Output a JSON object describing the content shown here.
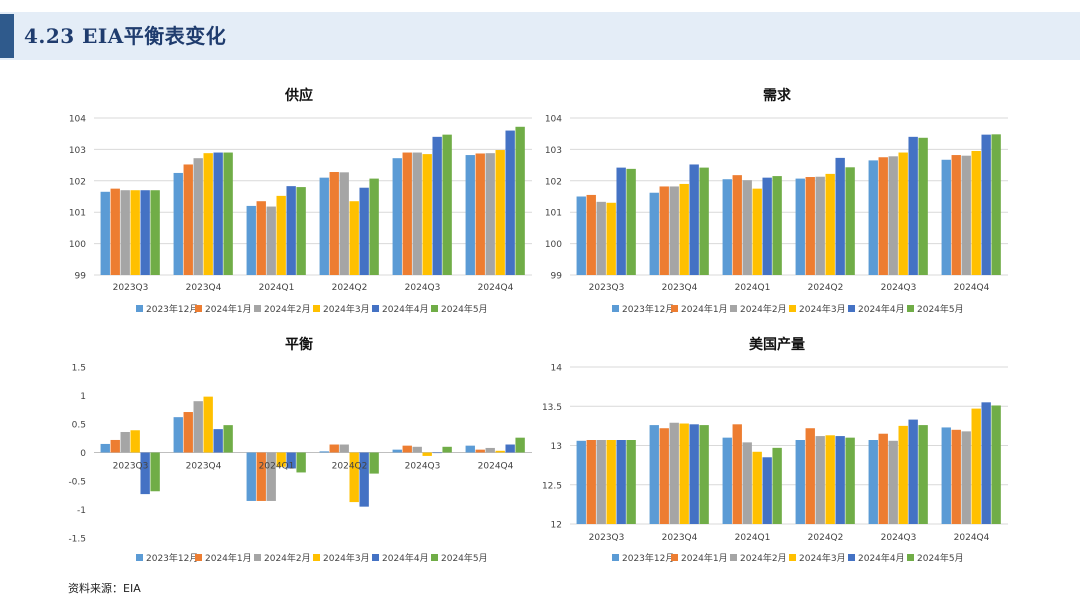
{
  "header": {
    "title": "4.23 EIA平衡表变化"
  },
  "footer": {
    "source": "资料来源：EIA"
  },
  "colors": [
    "#5b9bd5",
    "#ed7d31",
    "#a5a5a5",
    "#ffc000",
    "#4472c4",
    "#70ad47"
  ],
  "chart_data": [
    {
      "type": "bar",
      "title": "供应",
      "categories": [
        "2023Q3",
        "2023Q4",
        "2024Q1",
        "2024Q2",
        "2024Q3",
        "2024Q4"
      ],
      "ylim": [
        99,
        104
      ],
      "yticks": [
        99,
        100,
        101,
        102,
        103,
        104
      ],
      "grid": true,
      "legend": "bottom",
      "series": [
        {
          "name": "2023年12月",
          "values": [
            101.65,
            102.25,
            101.2,
            102.1,
            102.72,
            102.82
          ]
        },
        {
          "name": "2024年1月",
          "values": [
            101.75,
            102.52,
            101.35,
            102.28,
            102.9,
            102.87
          ]
        },
        {
          "name": "2024年2月",
          "values": [
            101.7,
            102.72,
            101.18,
            102.27,
            102.9,
            102.88
          ]
        },
        {
          "name": "2024年3月",
          "values": [
            101.7,
            102.88,
            101.52,
            101.35,
            102.85,
            102.98
          ]
        },
        {
          "name": "2024年4月",
          "values": [
            101.7,
            102.9,
            101.83,
            101.78,
            103.4,
            103.6
          ]
        },
        {
          "name": "2024年5月",
          "values": [
            101.7,
            102.9,
            101.8,
            102.07,
            103.47,
            103.72
          ]
        }
      ]
    },
    {
      "type": "bar",
      "title": "需求",
      "categories": [
        "2023Q3",
        "2023Q4",
        "2024Q1",
        "2024Q2",
        "2024Q3",
        "2024Q4"
      ],
      "ylim": [
        99,
        104
      ],
      "yticks": [
        99,
        100,
        101,
        102,
        103,
        104
      ],
      "grid": true,
      "legend": "bottom",
      "series": [
        {
          "name": "2023年12月",
          "values": [
            101.5,
            101.62,
            102.05,
            102.07,
            102.65,
            102.67
          ]
        },
        {
          "name": "2024年1月",
          "values": [
            101.55,
            101.82,
            102.18,
            102.12,
            102.75,
            102.82
          ]
        },
        {
          "name": "2024年2月",
          "values": [
            101.33,
            101.82,
            102.02,
            102.13,
            102.78,
            102.8
          ]
        },
        {
          "name": "2024年3月",
          "values": [
            101.3,
            101.9,
            101.75,
            102.22,
            102.9,
            102.95
          ]
        },
        {
          "name": "2024年4月",
          "values": [
            102.42,
            102.52,
            102.1,
            102.73,
            103.4,
            103.47
          ]
        },
        {
          "name": "2024年5月",
          "values": [
            102.38,
            102.42,
            102.15,
            102.43,
            103.37,
            103.48
          ]
        }
      ]
    },
    {
      "type": "bar",
      "title": "平衡",
      "categories": [
        "2023Q3",
        "2023Q4",
        "2024Q1",
        "2024Q2",
        "2024Q3",
        "2024Q4"
      ],
      "ylim": [
        -1.5,
        1.5
      ],
      "yticks": [
        -1.5,
        -1,
        -0.5,
        0,
        0.5,
        1,
        1.5
      ],
      "ytick_labels": [
        "-1.5",
        "-1",
        "-0.5",
        "0",
        "0.5",
        "1",
        "1.5"
      ],
      "grid": false,
      "legend": "bottom",
      "series": [
        {
          "name": "2023年12月",
          "values": [
            0.15,
            0.62,
            -0.85,
            0.02,
            0.05,
            0.12
          ]
        },
        {
          "name": "2024年1月",
          "values": [
            0.22,
            0.71,
            -0.85,
            0.14,
            0.12,
            0.05
          ]
        },
        {
          "name": "2024年2月",
          "values": [
            0.36,
            0.9,
            -0.85,
            0.14,
            0.1,
            0.08
          ]
        },
        {
          "name": "2024年3月",
          "values": [
            0.39,
            0.98,
            -0.25,
            -0.87,
            -0.06,
            0.03
          ]
        },
        {
          "name": "2024年4月",
          "values": [
            -0.73,
            0.41,
            -0.28,
            -0.95,
            0.0,
            0.14
          ]
        },
        {
          "name": "2024年5月",
          "values": [
            -0.68,
            0.48,
            -0.35,
            -0.37,
            0.1,
            0.26
          ]
        }
      ]
    },
    {
      "type": "bar",
      "title": "美国产量",
      "categories": [
        "2023Q3",
        "2023Q4",
        "2024Q1",
        "2024Q2",
        "2024Q3",
        "2024Q4"
      ],
      "ylim": [
        12,
        14
      ],
      "yticks": [
        12,
        12.5,
        13,
        13.5,
        14
      ],
      "ytick_labels": [
        "12",
        "12.5",
        "13",
        "13.5",
        "14"
      ],
      "grid": true,
      "legend": "bottom",
      "series": [
        {
          "name": "2023年12月",
          "values": [
            13.06,
            13.26,
            13.1,
            13.07,
            13.07,
            13.23
          ]
        },
        {
          "name": "2024年1月",
          "values": [
            13.07,
            13.22,
            13.27,
            13.22,
            13.15,
            13.2
          ]
        },
        {
          "name": "2024年2月",
          "values": [
            13.07,
            13.29,
            13.04,
            13.12,
            13.06,
            13.18
          ]
        },
        {
          "name": "2024年3月",
          "values": [
            13.07,
            13.28,
            12.92,
            13.13,
            13.25,
            13.47
          ]
        },
        {
          "name": "2024年4月",
          "values": [
            13.07,
            13.27,
            12.85,
            13.12,
            13.33,
            13.55
          ]
        },
        {
          "name": "2024年5月",
          "values": [
            13.07,
            13.26,
            12.97,
            13.1,
            13.26,
            13.51
          ]
        }
      ]
    }
  ]
}
